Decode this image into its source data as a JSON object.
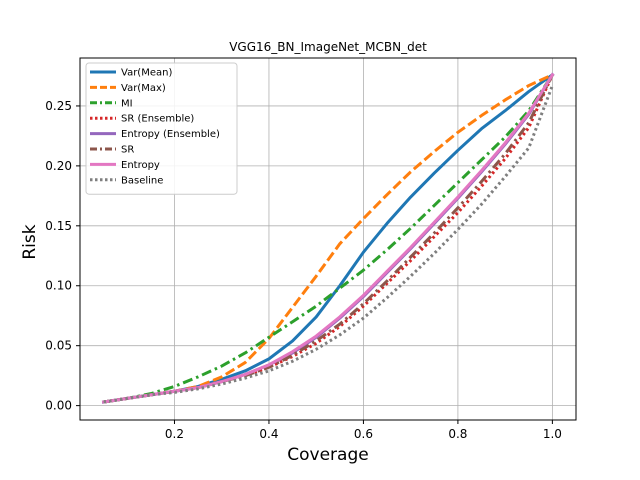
{
  "chart_data": {
    "type": "line",
    "title": "VGG16_BN_ImageNet_MCBN_det",
    "xlabel": "Coverage",
    "ylabel": "Risk",
    "xlim": [
      0.0,
      1.05
    ],
    "ylim": [
      -0.012,
      0.29
    ],
    "xticks": [
      0.2,
      0.4,
      0.6,
      0.8,
      1.0
    ],
    "xtick_labels": [
      "0.2",
      "0.4",
      "0.6",
      "0.8",
      "1.0"
    ],
    "yticks": [
      0.0,
      0.05,
      0.1,
      0.15,
      0.2,
      0.25
    ],
    "ytick_labels": [
      "0.00",
      "0.05",
      "0.10",
      "0.15",
      "0.20",
      "0.25"
    ],
    "grid": true,
    "legend_position": "top-left",
    "x": [
      0.05,
      0.1,
      0.15,
      0.2,
      0.25,
      0.3,
      0.35,
      0.4,
      0.45,
      0.5,
      0.55,
      0.6,
      0.65,
      0.7,
      0.75,
      0.8,
      0.85,
      0.9,
      0.95,
      1.0
    ],
    "series": [
      {
        "name": "Var(Mean)",
        "color": "#1f77b4",
        "dash": "solid",
        "values": [
          0.003,
          0.006,
          0.009,
          0.012,
          0.016,
          0.022,
          0.029,
          0.039,
          0.054,
          0.074,
          0.1,
          0.128,
          0.152,
          0.174,
          0.194,
          0.213,
          0.231,
          0.246,
          0.262,
          0.276
        ]
      },
      {
        "name": "Var(Max)",
        "color": "#ff7f0e",
        "dash": "dashed",
        "values": [
          0.003,
          0.006,
          0.009,
          0.012,
          0.016,
          0.024,
          0.036,
          0.056,
          0.082,
          0.108,
          0.135,
          0.156,
          0.176,
          0.195,
          0.212,
          0.228,
          0.242,
          0.255,
          0.267,
          0.276
        ]
      },
      {
        "name": "MI",
        "color": "#2ca02c",
        "dash": "dashdot",
        "values": [
          0.003,
          0.006,
          0.01,
          0.016,
          0.024,
          0.033,
          0.044,
          0.057,
          0.07,
          0.083,
          0.098,
          0.113,
          0.13,
          0.148,
          0.167,
          0.186,
          0.205,
          0.224,
          0.246,
          0.276
        ]
      },
      {
        "name": "SR (Ensemble)",
        "color": "#d62728",
        "dash": "dotted",
        "values": [
          0.003,
          0.006,
          0.009,
          0.012,
          0.015,
          0.02,
          0.025,
          0.032,
          0.041,
          0.052,
          0.066,
          0.083,
          0.102,
          0.121,
          0.141,
          0.161,
          0.183,
          0.206,
          0.232,
          0.276
        ]
      },
      {
        "name": "Entropy (Ensemble)",
        "color": "#9467bd",
        "dash": "solid",
        "values": [
          0.003,
          0.006,
          0.009,
          0.012,
          0.015,
          0.02,
          0.026,
          0.034,
          0.044,
          0.057,
          0.073,
          0.091,
          0.111,
          0.131,
          0.152,
          0.173,
          0.195,
          0.218,
          0.243,
          0.276
        ]
      },
      {
        "name": "SR",
        "color": "#8c564b",
        "dash": "dashdot",
        "values": [
          0.003,
          0.006,
          0.009,
          0.012,
          0.015,
          0.02,
          0.025,
          0.032,
          0.042,
          0.054,
          0.068,
          0.085,
          0.104,
          0.124,
          0.144,
          0.165,
          0.187,
          0.21,
          0.236,
          0.276
        ]
      },
      {
        "name": "Entropy",
        "color": "#e377c2",
        "dash": "solid",
        "values": [
          0.003,
          0.006,
          0.009,
          0.012,
          0.015,
          0.02,
          0.026,
          0.034,
          0.045,
          0.058,
          0.074,
          0.092,
          0.112,
          0.132,
          0.153,
          0.174,
          0.196,
          0.219,
          0.244,
          0.276
        ]
      },
      {
        "name": "Baseline",
        "color": "#7f7f7f",
        "dash": "dotted",
        "values": [
          0.003,
          0.006,
          0.009,
          0.011,
          0.014,
          0.018,
          0.023,
          0.029,
          0.037,
          0.047,
          0.059,
          0.073,
          0.09,
          0.108,
          0.127,
          0.147,
          0.168,
          0.191,
          0.215,
          0.267
        ]
      }
    ]
  }
}
